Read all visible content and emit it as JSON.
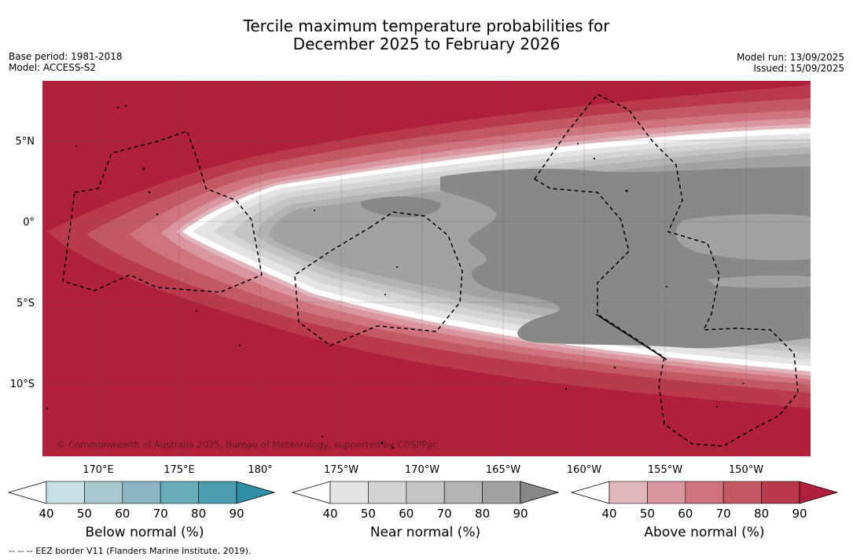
{
  "title": {
    "line1": "Tercile maximum temperature probabilities for",
    "line2": "December 2025 to February 2026"
  },
  "meta": {
    "base_period": "Base period: 1981-2018",
    "model": "Model: ACCESS-S2",
    "model_run": "Model run: 13/09/2025",
    "issued": "Issued: 15/09/2025"
  },
  "map": {
    "lat_labels": [
      "5°N",
      "0°",
      "5°S",
      "10°S"
    ],
    "lon_labels": [
      "170°E",
      "175°E",
      "180°",
      "175°W",
      "170°W",
      "165°W",
      "160°W",
      "155°W",
      "150°W"
    ],
    "copyright": "© Commonwealth of Australia 2025, Bureau of Meteorology, supported by COSPPac",
    "region": "Western/central equatorial Pacific, approx. 164°E–146°W, 14°S–8°N",
    "pattern": "Near normal (grey) tongue along the equator east of the dateline; above normal (red) to the north, west and south"
  },
  "colorbars": [
    {
      "title": "Below normal (%)",
      "ticks": [
        "40",
        "50",
        "60",
        "70",
        "80",
        "90"
      ],
      "colors": [
        "#c8e0e6",
        "#a8c9cf",
        "#89b6c1",
        "#6aabb9",
        "#4a9daf",
        "#2f8fa4"
      ]
    },
    {
      "title": "Near normal (%)",
      "ticks": [
        "40",
        "50",
        "60",
        "70",
        "80",
        "90"
      ],
      "colors": [
        "#e4e4e4",
        "#d4d4d4",
        "#c4c4c4",
        "#b3b3b3",
        "#a2a2a2",
        "#888888"
      ]
    },
    {
      "title": "Above normal (%)",
      "ticks": [
        "40",
        "50",
        "60",
        "70",
        "80",
        "90"
      ],
      "colors": [
        "#e2b6bd",
        "#d9969f",
        "#cf747f",
        "#c45966",
        "#b83a4c",
        "#b01f3b"
      ]
    }
  ],
  "footnote": "-- -- -- EEZ border V11 (Flanders Marine Institute, 2019)."
}
